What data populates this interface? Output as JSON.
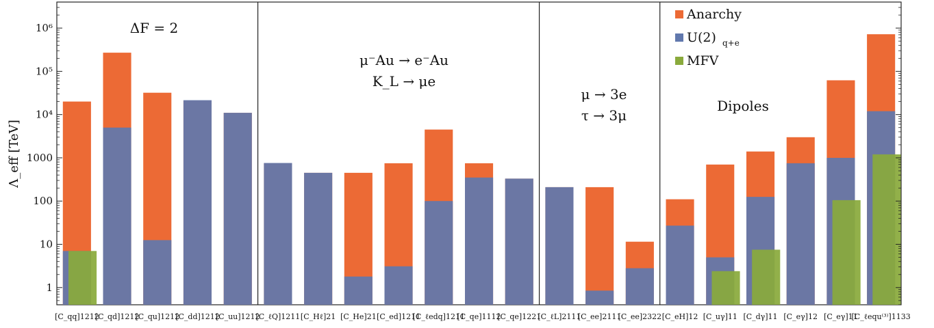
{
  "chart_data": {
    "type": "bar",
    "ylabel": "Λ_eff [TeV]",
    "yscale": "log",
    "ylim": [
      0.4,
      4000000
    ],
    "yticks": [
      {
        "value": 1,
        "label": "1"
      },
      {
        "value": 10,
        "label": "10"
      },
      {
        "value": 100,
        "label": "100"
      },
      {
        "value": 1000,
        "label": "1000"
      },
      {
        "value": 10000,
        "label": "10⁴"
      },
      {
        "value": 100000,
        "label": "10⁵"
      },
      {
        "value": 1000000,
        "label": "10⁶"
      }
    ],
    "categories": [
      "[C_qq]1212",
      "[C_qd]1212",
      "[C_qu]1212",
      "[C_dd]1212",
      "[C_uu]1212",
      "[C_ℓQ]1211",
      "[C_Hℓ]21",
      "[C_He]21",
      "[C_ed]1211",
      "[C_ℓedq]1211",
      "[C_qe]1112",
      "[C_qe]1221",
      "[C_ℓL]2111",
      "[C_ee]2111",
      "[C_ee]2322",
      "[C_eH]12",
      "[C_uγ]11",
      "[C_dγ]11",
      "[C_eγ]12",
      "[C_eγ]11",
      "[C_ℓequ⁽³⁾]1133"
    ],
    "series": [
      {
        "name": "Anarchy",
        "color": "#ec6a35",
        "values": [
          20000,
          270000,
          32000,
          21000,
          11000,
          750,
          450,
          450,
          750,
          4500,
          750,
          330,
          210,
          210,
          11.5,
          110,
          700,
          1400,
          3000,
          62000,
          720000
        ]
      },
      {
        "name": "U(2)_{q+e}",
        "color": "#6178ad",
        "values": [
          7,
          5000,
          12.5,
          21500,
          11000,
          760,
          450,
          1.8,
          3.1,
          100,
          350,
          330,
          210,
          0.85,
          2.8,
          27,
          5,
          125,
          750,
          1000,
          12000
        ]
      },
      {
        "name": "MFV",
        "color": "#8aaa3c",
        "values": [
          7,
          null,
          null,
          null,
          null,
          null,
          null,
          null,
          null,
          null,
          null,
          null,
          null,
          null,
          null,
          null,
          2.4,
          7.5,
          null,
          105,
          1200
        ]
      }
    ],
    "legend": {
      "position": "top-right",
      "entries": [
        "Anarchy",
        "U(2)",
        "MFV"
      ],
      "u2_subscript": "q+e"
    },
    "group_annotations": [
      {
        "lines": [
          "ΔF = 2"
        ]
      },
      {
        "lines": [
          "μ⁻Au → e⁻Au",
          "K_L → μe"
        ]
      },
      {
        "lines": [
          "μ → 3e",
          "τ → 3μ"
        ]
      },
      {
        "lines": [
          "Dipoles"
        ]
      }
    ],
    "group_dividers_after_index": [
      4,
      11,
      14
    ],
    "grid": false
  }
}
